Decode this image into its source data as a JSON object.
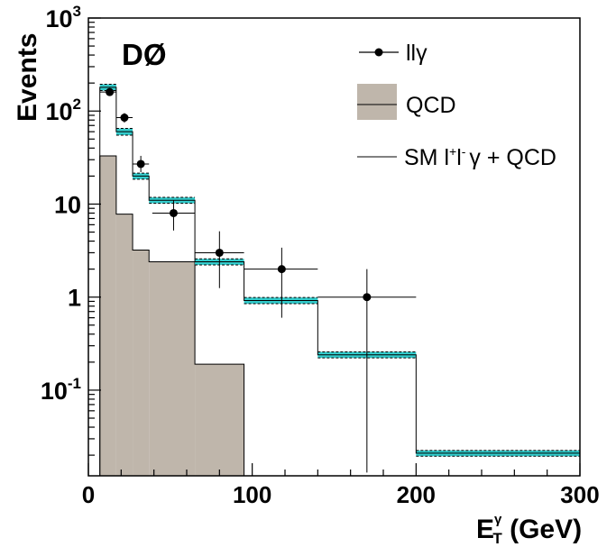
{
  "chart_data": {
    "type": "histogram",
    "experiment_label": "DØ",
    "xlabel": {
      "main": "E",
      "sub": "T",
      "sup": "γ",
      "unit": " (GeV)"
    },
    "ylabel": "Events",
    "xlim": [
      0,
      300
    ],
    "ylim": [
      0.012,
      1000
    ],
    "yscale": "log",
    "x_ticks": [
      0,
      100,
      200,
      300
    ],
    "x_tick_labels": [
      "0",
      "100",
      "200",
      "300"
    ],
    "y_ticks": [
      {
        "value": 1000,
        "base": "10",
        "exp": "3"
      },
      {
        "value": 100,
        "base": "10",
        "exp": "2"
      },
      {
        "value": 10,
        "base": "10",
        "exp": ""
      },
      {
        "value": 1,
        "base": "1",
        "exp": ""
      },
      {
        "value": 0.1,
        "base": "10",
        "exp": "-1"
      }
    ],
    "bin_edges": [
      7,
      17,
      27,
      37,
      65,
      95,
      140,
      200,
      300
    ],
    "series": [
      {
        "name": "QCD",
        "style": "filled-histogram",
        "color": "#bfb6ab",
        "values": [
          33,
          7.8,
          3.2,
          2.4,
          0.19,
          0,
          0,
          0
        ]
      },
      {
        "name": "SM l⁺l⁻γ + QCD",
        "style": "step-histogram-with-band",
        "color": "#000000",
        "band_color": "#33cccc",
        "values": [
          180,
          60,
          20,
          11,
          2.4,
          0.92,
          0.24,
          0.021
        ],
        "band_low": [
          166,
          55,
          18.5,
          10.2,
          2.22,
          0.85,
          0.222,
          0.0195
        ],
        "band_high": [
          194,
          65,
          21.5,
          11.8,
          2.58,
          0.99,
          0.258,
          0.0225
        ]
      },
      {
        "name": "llγ",
        "style": "points-with-errors",
        "color": "#000000",
        "points": [
          {
            "x": 13,
            "y": 160,
            "xlo": 7,
            "xhi": 17,
            "ylo": 146,
            "yhi": 176
          },
          {
            "x": 22,
            "y": 85,
            "xlo": 17,
            "xhi": 27,
            "ylo": 75,
            "yhi": 95
          },
          {
            "x": 32,
            "y": 27,
            "xlo": 27,
            "xhi": 37,
            "ylo": 22,
            "yhi": 33
          },
          {
            "x": 52,
            "y": 8,
            "xlo": 39,
            "xhi": 65,
            "ylo": 5.2,
            "yhi": 11
          },
          {
            "x": 80,
            "y": 3,
            "xlo": 65,
            "xhi": 95,
            "ylo": 1.25,
            "yhi": 5.1
          },
          {
            "x": 118,
            "y": 2,
            "xlo": 95,
            "xhi": 140,
            "ylo": 0.6,
            "yhi": 3.4
          },
          {
            "x": 170,
            "y": 1,
            "xlo": 140,
            "xhi": 200,
            "ylo": 0.013,
            "yhi": 2
          }
        ]
      }
    ],
    "legend": {
      "position": "top-right",
      "entries": [
        {
          "key": "data",
          "label": "llγ"
        },
        {
          "key": "qcd",
          "label": "QCD"
        },
        {
          "key": "sm",
          "label_main": "SM l",
          "sup1": "+",
          "mid": "l",
          "sup2": "-",
          "tail": "γ + QCD"
        }
      ]
    },
    "grid": false
  }
}
